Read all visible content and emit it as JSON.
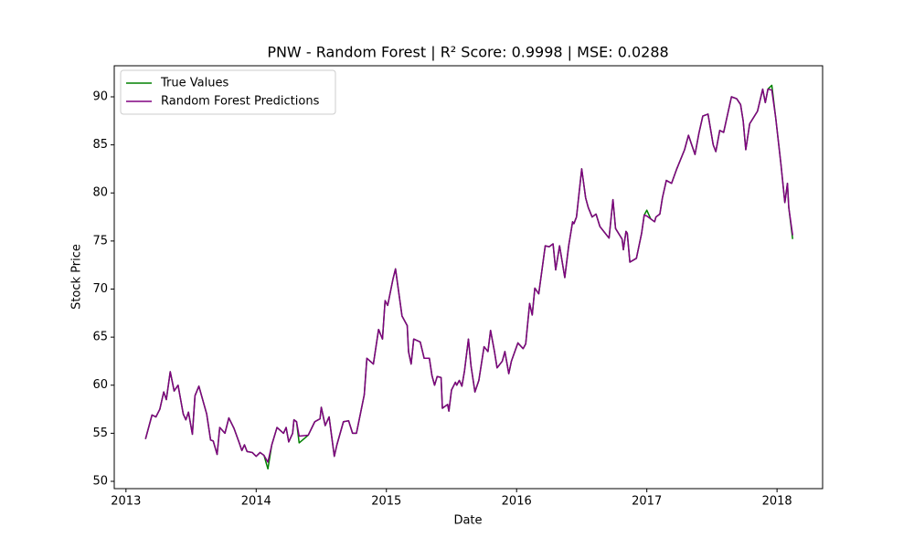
{
  "chart_data": {
    "type": "line",
    "title": "PNW - Random Forest | R² Score: 0.9998 | MSE: 0.0288",
    "x_label": "Date",
    "y_label": "Stock Price",
    "x": [
      2013.15,
      2013.2,
      2013.23,
      2013.26,
      2013.29,
      2013.31,
      2013.34,
      2013.37,
      2013.4,
      2013.44,
      2013.46,
      2013.48,
      2013.51,
      2013.53,
      2013.56,
      2013.62,
      2013.65,
      2013.67,
      2013.7,
      2013.72,
      2013.76,
      2013.79,
      2013.83,
      2013.87,
      2013.89,
      2013.91,
      2013.93,
      2013.97,
      2014.0,
      2014.03,
      2014.06,
      2014.09,
      2014.12,
      2014.16,
      2014.21,
      2014.23,
      2014.25,
      2014.28,
      2014.29,
      2014.31,
      2014.33,
      2014.4,
      2014.45,
      2014.49,
      2014.5,
      2014.53,
      2014.56,
      2014.6,
      2014.62,
      2014.67,
      2014.71,
      2014.74,
      2014.77,
      2014.8,
      2014.83,
      2014.85,
      2014.9,
      2014.94,
      2014.97,
      2014.99,
      2015.01,
      2015.05,
      2015.07,
      2015.12,
      2015.16,
      2015.17,
      2015.19,
      2015.21,
      2015.26,
      2015.29,
      2015.33,
      2015.35,
      2015.37,
      2015.39,
      2015.42,
      2015.43,
      2015.47,
      2015.48,
      2015.5,
      2015.53,
      2015.54,
      2015.56,
      2015.58,
      2015.6,
      2015.63,
      2015.65,
      2015.68,
      2015.71,
      2015.75,
      2015.78,
      2015.8,
      2015.83,
      2015.85,
      2015.89,
      2015.91,
      2015.94,
      2015.96,
      2016.01,
      2016.05,
      2016.07,
      2016.1,
      2016.12,
      2016.14,
      2016.17,
      2016.22,
      2016.25,
      2016.28,
      2016.3,
      2016.33,
      2016.37,
      2016.4,
      2016.43,
      2016.44,
      2016.46,
      2016.5,
      2016.53,
      2016.55,
      2016.58,
      2016.61,
      2016.64,
      2016.71,
      2016.74,
      2016.76,
      2016.81,
      2016.82,
      2016.84,
      2016.85,
      2016.87,
      2016.92,
      2016.94,
      2016.96,
      2016.98,
      2017.0,
      2017.03,
      2017.06,
      2017.07,
      2017.1,
      2017.12,
      2017.15,
      2017.19,
      2017.23,
      2017.29,
      2017.32,
      2017.37,
      2017.4,
      2017.43,
      2017.47,
      2017.51,
      2017.53,
      2017.56,
      2017.59,
      2017.65,
      2017.69,
      2017.72,
      2017.74,
      2017.76,
      2017.79,
      2017.85,
      2017.89,
      2017.91,
      2017.93,
      2017.96,
      2017.99,
      2018.03,
      2018.06,
      2018.08,
      2018.09,
      2018.12
    ],
    "series": [
      {
        "name": "True Values",
        "color": "#008000",
        "values": [
          54.4,
          56.9,
          56.7,
          57.5,
          59.3,
          58.5,
          61.4,
          59.4,
          60.0,
          57.0,
          56.4,
          57.2,
          54.9,
          58.9,
          59.9,
          57.0,
          54.3,
          54.2,
          52.8,
          55.6,
          55.0,
          56.6,
          55.5,
          54.0,
          53.2,
          53.8,
          53.1,
          53.0,
          52.6,
          53.0,
          52.7,
          51.3,
          53.8,
          55.6,
          55.0,
          55.6,
          54.1,
          55.0,
          56.4,
          56.2,
          54.0,
          54.8,
          56.2,
          56.5,
          57.7,
          55.8,
          56.7,
          52.6,
          53.8,
          56.2,
          56.3,
          55.0,
          55.0,
          57.0,
          59.0,
          62.8,
          62.2,
          65.8,
          64.8,
          68.8,
          68.3,
          71.0,
          72.1,
          67.2,
          66.2,
          63.5,
          62.2,
          64.8,
          64.5,
          62.8,
          62.8,
          61.0,
          60.0,
          60.9,
          60.8,
          57.6,
          58.0,
          57.3,
          59.5,
          60.3,
          60.0,
          60.5,
          59.9,
          61.5,
          64.8,
          62.0,
          59.3,
          60.5,
          64.0,
          63.5,
          65.7,
          63.5,
          61.8,
          62.5,
          63.5,
          61.2,
          62.5,
          64.4,
          63.8,
          64.3,
          68.5,
          67.3,
          70.1,
          69.5,
          74.5,
          74.4,
          74.7,
          72.0,
          74.5,
          71.2,
          74.5,
          77.0,
          76.8,
          77.5,
          82.5,
          79.5,
          78.5,
          77.5,
          77.8,
          76.5,
          75.3,
          79.3,
          76.3,
          75.2,
          74.1,
          76.0,
          75.8,
          72.8,
          73.2,
          74.5,
          75.8,
          77.7,
          78.2,
          77.3,
          77.0,
          77.5,
          77.8,
          79.5,
          81.3,
          81.0,
          82.5,
          84.5,
          86.0,
          84.0,
          86.2,
          88.0,
          88.2,
          85.0,
          84.3,
          86.5,
          86.3,
          90.0,
          89.8,
          89.2,
          87.5,
          84.5,
          87.2,
          88.5,
          90.8,
          89.4,
          90.8,
          91.2,
          87.8,
          83.0,
          79.0,
          81.0,
          78.5,
          75.2
        ]
      },
      {
        "name": "Random Forest Predictions",
        "color": "#800080",
        "values": [
          54.4,
          56.9,
          56.7,
          57.5,
          59.3,
          58.5,
          61.4,
          59.4,
          60.0,
          57.0,
          56.4,
          57.2,
          54.9,
          58.9,
          59.9,
          57.0,
          54.3,
          54.2,
          52.8,
          55.6,
          55.0,
          56.6,
          55.5,
          54.0,
          53.2,
          53.8,
          53.1,
          53.0,
          52.6,
          53.0,
          52.7,
          52.0,
          53.8,
          55.6,
          55.0,
          55.6,
          54.1,
          55.0,
          56.4,
          56.2,
          54.7,
          54.8,
          56.2,
          56.5,
          57.7,
          55.8,
          56.7,
          52.6,
          53.8,
          56.2,
          56.3,
          55.0,
          55.0,
          57.0,
          59.0,
          62.8,
          62.2,
          65.8,
          64.8,
          68.8,
          68.3,
          71.0,
          72.1,
          67.2,
          66.2,
          63.5,
          62.2,
          64.8,
          64.5,
          62.8,
          62.8,
          61.0,
          60.0,
          60.9,
          60.8,
          57.6,
          58.0,
          57.3,
          59.5,
          60.3,
          60.0,
          60.5,
          59.9,
          61.5,
          64.8,
          62.0,
          59.3,
          60.5,
          64.0,
          63.5,
          65.7,
          63.5,
          61.8,
          62.5,
          63.5,
          61.2,
          62.5,
          64.4,
          63.8,
          64.3,
          68.5,
          67.3,
          70.1,
          69.5,
          74.5,
          74.4,
          74.7,
          72.0,
          74.5,
          71.2,
          74.5,
          77.0,
          76.8,
          77.5,
          82.5,
          79.5,
          78.5,
          77.5,
          77.8,
          76.5,
          75.3,
          79.3,
          76.3,
          75.2,
          74.1,
          76.0,
          75.8,
          72.8,
          73.2,
          74.5,
          75.8,
          77.7,
          77.6,
          77.3,
          77.0,
          77.5,
          77.8,
          79.5,
          81.3,
          81.0,
          82.5,
          84.5,
          86.0,
          84.0,
          86.2,
          88.0,
          88.2,
          85.0,
          84.3,
          86.5,
          86.3,
          90.0,
          89.8,
          89.2,
          87.5,
          84.5,
          87.2,
          88.5,
          90.8,
          89.4,
          90.8,
          90.7,
          87.8,
          83.0,
          79.0,
          81.0,
          78.5,
          75.6
        ]
      }
    ],
    "xlim": [
      2012.91,
      2018.35
    ],
    "xticks": [
      2013,
      2014,
      2015,
      2016,
      2017,
      2018
    ],
    "ylim": [
      49.24,
      93.23
    ],
    "yticks": [
      50,
      55,
      60,
      65,
      70,
      75,
      80,
      85,
      90
    ],
    "grid": false,
    "legend": "upper left"
  }
}
